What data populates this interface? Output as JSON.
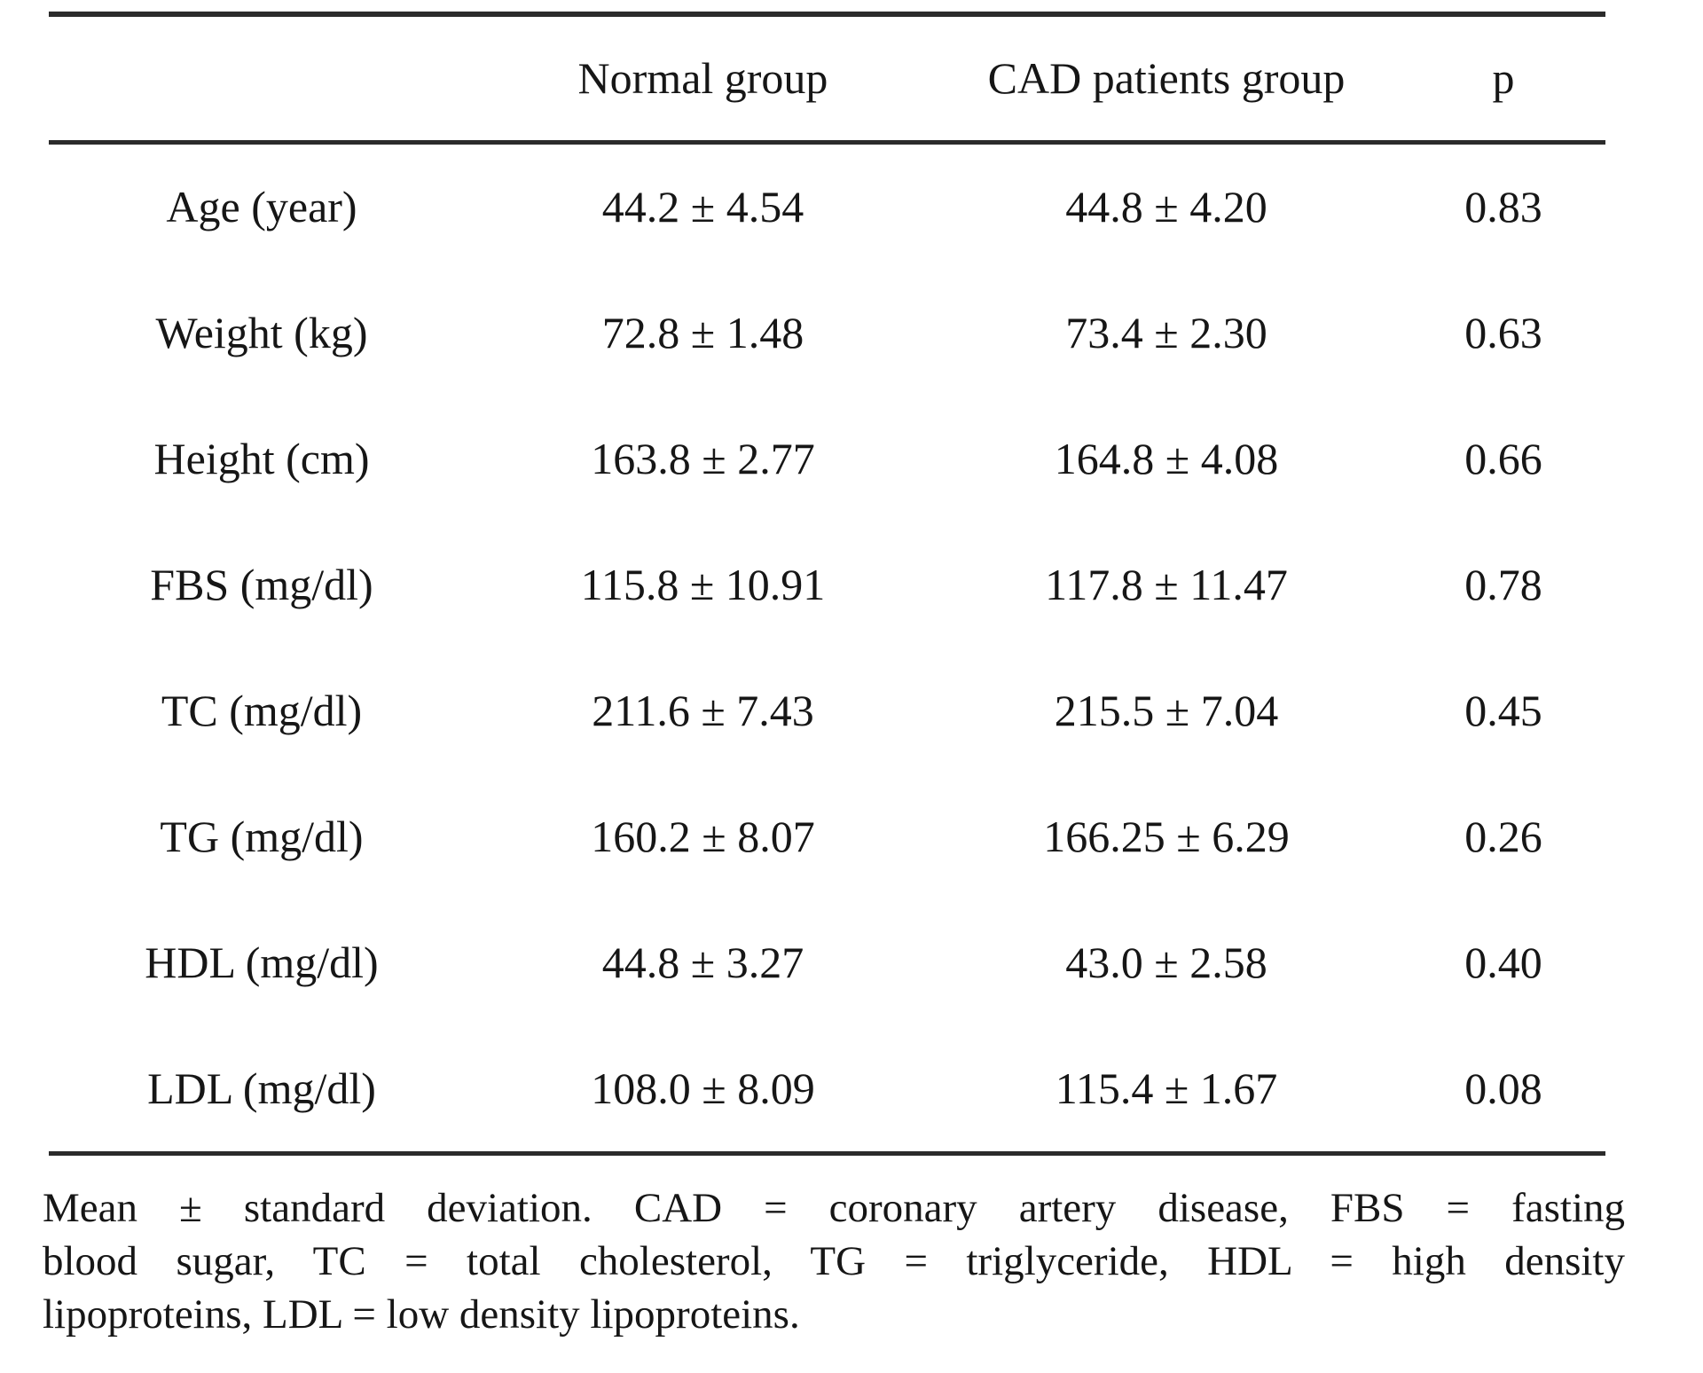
{
  "document": {
    "columns": {
      "label": "",
      "normal": "Normal group",
      "cad": "CAD patients group",
      "p": "p"
    },
    "rows": [
      {
        "label": "Age (year)",
        "normal": "44.2 ± 4.54",
        "cad": "44.8 ± 4.20",
        "p": "0.83"
      },
      {
        "label": "Weight (kg)",
        "normal": "72.8 ± 1.48",
        "cad": "73.4 ± 2.30",
        "p": "0.63"
      },
      {
        "label": "Height (cm)",
        "normal": "163.8 ± 2.77",
        "cad": "164.8 ± 4.08",
        "p": "0.66"
      },
      {
        "label": "FBS (mg/dl)",
        "normal": "115.8 ± 10.91",
        "cad": "117.8 ± 11.47",
        "p": "0.78"
      },
      {
        "label": "TC (mg/dl)",
        "normal": "211.6 ± 7.43",
        "cad": "215.5 ± 7.04",
        "p": "0.45"
      },
      {
        "label": "TG (mg/dl)",
        "normal": "160.2 ± 8.07",
        "cad": "166.25 ± 6.29",
        "p": "0.26"
      },
      {
        "label": "HDL (mg/dl)",
        "normal": "44.8 ± 3.27",
        "cad": "43.0 ± 2.58",
        "p": "0.40"
      },
      {
        "label": "LDL (mg/dl)",
        "normal": "108.0 ± 8.09",
        "cad": "115.4 ± 1.67",
        "p": "0.08"
      }
    ],
    "footnote_lines": [
      "Mean ± standard deviation. CAD = coronary artery disease, FBS = fasting",
      "blood sugar, TC = total cholesterol, TG = triglyceride, HDL = high density",
      "lipoproteins, LDL = low density lipoproteins."
    ]
  },
  "chart_data": {
    "type": "table",
    "title": "",
    "columns": [
      "",
      "Normal group",
      "CAD patients group",
      "p"
    ],
    "rows": [
      [
        "Age (year)",
        "44.2 ± 4.54",
        "44.8 ± 4.20",
        "0.83"
      ],
      [
        "Weight (kg)",
        "72.8 ± 1.48",
        "73.4 ± 2.30",
        "0.63"
      ],
      [
        "Height (cm)",
        "163.8 ± 2.77",
        "164.8 ± 4.08",
        "0.66"
      ],
      [
        "FBS (mg/dl)",
        "115.8 ± 10.91",
        "117.8 ± 11.47",
        "0.78"
      ],
      [
        "TC (mg/dl)",
        "211.6 ± 7.43",
        "215.5 ± 7.04",
        "0.45"
      ],
      [
        "TG (mg/dl)",
        "160.2 ± 8.07",
        "166.25 ± 6.29",
        "0.26"
      ],
      [
        "HDL (mg/dl)",
        "44.8 ± 3.27",
        "43.0 ± 2.58",
        "0.40"
      ],
      [
        "LDL (mg/dl)",
        "108.0 ± 8.09",
        "115.4 ± 1.67",
        "0.08"
      ]
    ],
    "footnote": "Mean ± standard deviation. CAD = coronary artery disease, FBS = fasting blood sugar, TC = total cholesterol, TG = triglyceride, HDL = high density lipoproteins, LDL = low density lipoproteins."
  }
}
